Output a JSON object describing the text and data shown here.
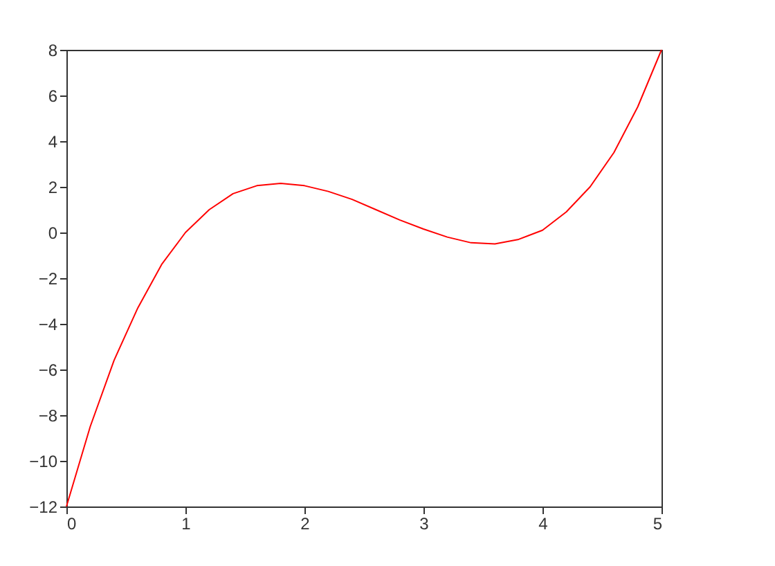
{
  "chart_data": {
    "type": "line",
    "x": [
      0,
      0.2,
      0.4,
      0.6,
      0.8,
      1.0,
      1.2,
      1.4,
      1.6,
      1.8,
      2.0,
      2.2,
      2.4,
      2.6,
      2.8,
      3.0,
      3.2,
      3.4,
      3.6,
      3.8,
      4.0,
      4.2,
      4.4,
      4.6,
      4.8,
      5.0
    ],
    "series": [
      {
        "color": "#ff0000",
        "values": [
          -12,
          -8.5,
          -5.6,
          -3.3,
          -1.4,
          0.0,
          1.0,
          1.7,
          2.05,
          2.15,
          2.05,
          1.8,
          1.45,
          1.0,
          0.55,
          0.15,
          -0.2,
          -0.45,
          -0.5,
          -0.3,
          0.1,
          0.9,
          2.0,
          3.5,
          5.5,
          8.0
        ]
      }
    ],
    "xlim": [
      0,
      5
    ],
    "xticks": [
      0,
      1,
      2,
      3,
      4,
      5
    ],
    "ylim": [
      -12,
      8
    ],
    "yticks": [
      -12,
      -10,
      -8,
      -6,
      -4,
      -2,
      0,
      2,
      4,
      6,
      8
    ],
    "grid": false,
    "marker": "none",
    "line_style": "solid"
  }
}
